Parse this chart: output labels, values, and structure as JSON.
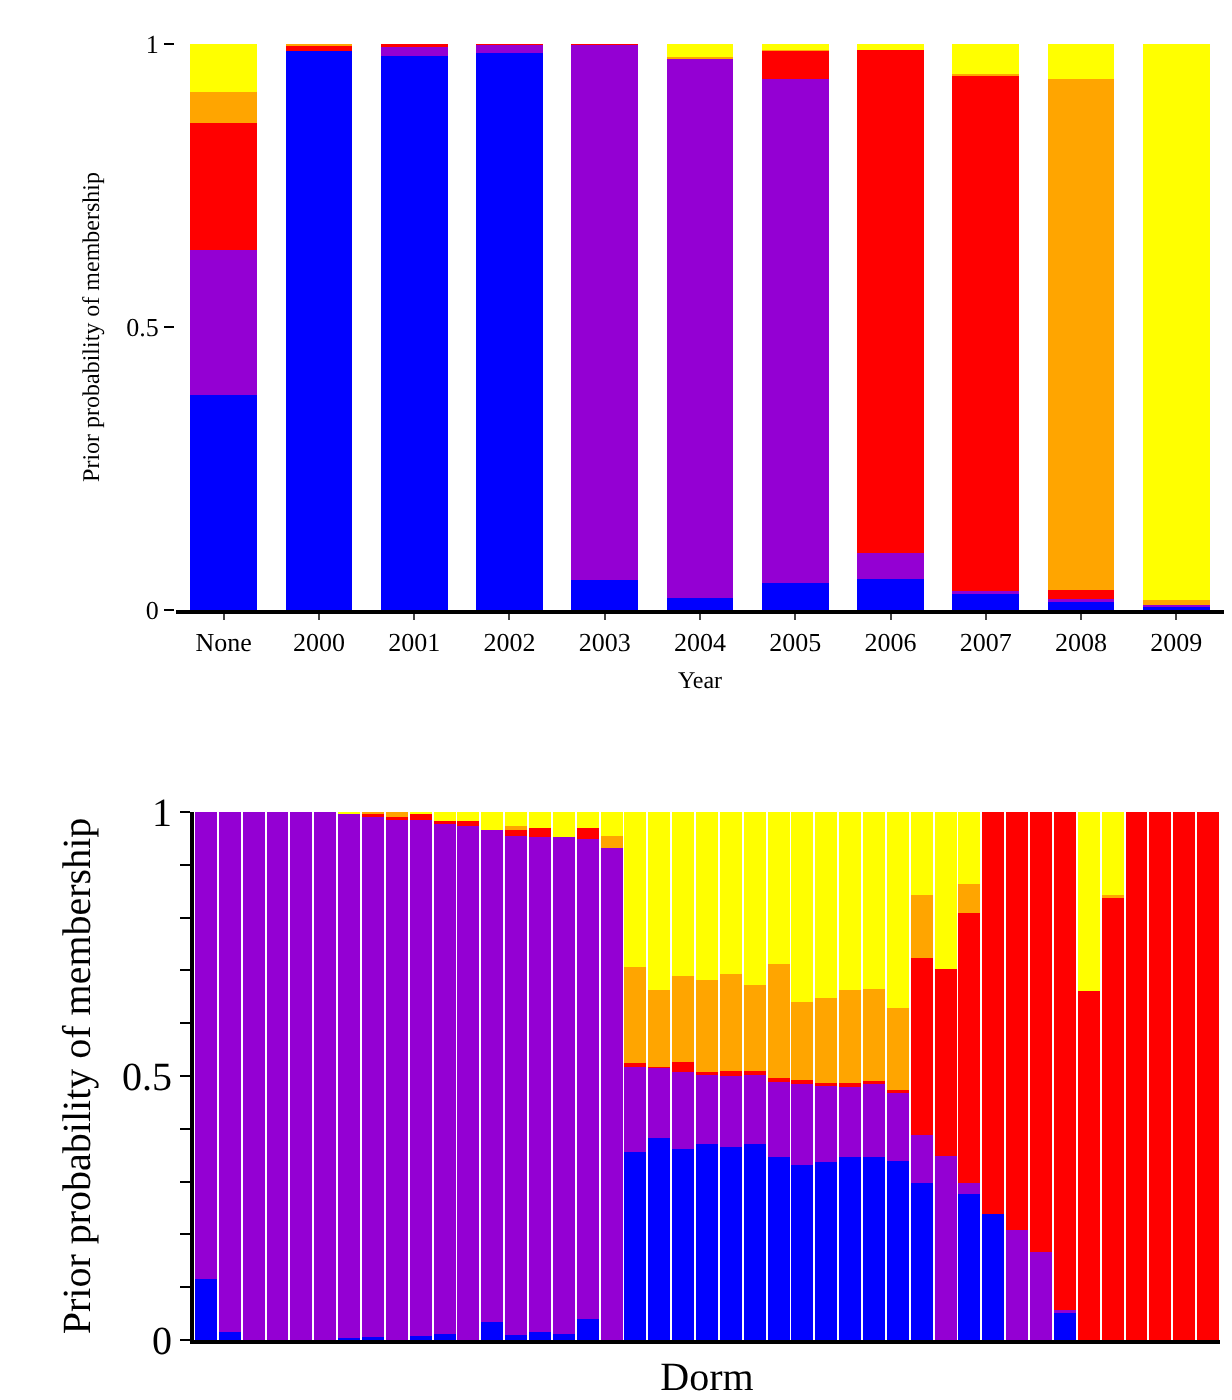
{
  "chart_data": [
    {
      "type": "bar",
      "stacked": true,
      "xlabel": "Year",
      "ylabel": "Prior probability of membership",
      "categories": [
        "None",
        "2000",
        "2001",
        "2002",
        "2003",
        "2004",
        "2005",
        "2006",
        "2007",
        "2008",
        "2009"
      ],
      "ylim": [
        0,
        1
      ],
      "yticks": [
        0,
        0.5,
        1
      ],
      "series": [
        {
          "color": "#0000ff",
          "values": [
            0.38,
            0.987,
            0.978,
            0.985,
            0.053,
            0.021,
            0.048,
            0.055,
            0.029,
            0.015,
            0.006
          ]
        },
        {
          "color": "#9400d3",
          "values": [
            0.256,
            0,
            0.016,
            0.013,
            0.945,
            0.953,
            0.891,
            0.045,
            0.005,
            0.005,
            0.003
          ]
        },
        {
          "color": "#ff0000",
          "values": [
            0.224,
            0.01,
            0.006,
            0.002,
            0.002,
            0,
            0.048,
            0.89,
            0.909,
            0.016,
            0
          ]
        },
        {
          "color": "#ffa500",
          "values": [
            0.056,
            0.003,
            0,
            0,
            0,
            0.003,
            0.003,
            0,
            0.004,
            0.903,
            0.009
          ]
        },
        {
          "color": "#ffff00",
          "values": [
            0.084,
            0,
            0,
            0,
            0,
            0.023,
            0.01,
            0.01,
            0.053,
            0.061,
            0.982
          ]
        }
      ]
    },
    {
      "type": "bar",
      "stacked": true,
      "xlabel": "Dorm",
      "ylabel": "Prior probability of membership",
      "categories": [
        null,
        null,
        null,
        null,
        null,
        null,
        null,
        null,
        null,
        null,
        null,
        null,
        null,
        null,
        null,
        null,
        null,
        null,
        null,
        null,
        null,
        null,
        null,
        null,
        null,
        null,
        null,
        null,
        null,
        null,
        null,
        null,
        null,
        null,
        null,
        null,
        null,
        null,
        null,
        null,
        null,
        null,
        null
      ],
      "ylim": [
        0,
        1
      ],
      "yticks": [
        0,
        {
          "value": 0.1,
          "label": null
        },
        {
          "value": 0.2,
          "label": null
        },
        {
          "value": 0.3,
          "label": null
        },
        {
          "value": 0.4,
          "label": null
        },
        0.5,
        {
          "value": 0.6,
          "label": null
        },
        {
          "value": 0.7,
          "label": null
        },
        {
          "value": 0.8,
          "label": null
        },
        {
          "value": 0.9,
          "label": null
        },
        1
      ],
      "series": [
        {
          "color": "#0000ff",
          "values": [
            0.116,
            0.016,
            0,
            0,
            0,
            0,
            0.004,
            0.006,
            0,
            0.007,
            0.012,
            0,
            0.035,
            0.01,
            0.015,
            0.011,
            0.04,
            0,
            0.356,
            0.383,
            0.361,
            0.372,
            0.366,
            0.372,
            0.347,
            0.331,
            0.338,
            0.347,
            0.347,
            0.339,
            0.297,
            0,
            0.277,
            0.238,
            0,
            0,
            0.052,
            0,
            0,
            0,
            0,
            0,
            0
          ]
        },
        {
          "color": "#9400d3",
          "values": [
            0.884,
            0.984,
            1,
            1,
            1,
            1,
            0.992,
            0.984,
            0.984,
            0.977,
            0.965,
            0.974,
            0.93,
            0.945,
            0.938,
            0.942,
            0.908,
            0.931,
            0.161,
            0.132,
            0.146,
            0.13,
            0.134,
            0.129,
            0.142,
            0.154,
            0.144,
            0.132,
            0.138,
            0.129,
            0.092,
            0.349,
            0.021,
            0,
            0.209,
            0.167,
            0.004,
            0,
            0,
            0,
            0,
            0,
            0
          ]
        },
        {
          "color": "#ff0000",
          "values": [
            0,
            0,
            0,
            0,
            0,
            0,
            0,
            0.006,
            0.007,
            0.013,
            0.006,
            0.009,
            0,
            0.01,
            0.017,
            0,
            0.022,
            0,
            0.007,
            0.002,
            0.019,
            0.005,
            0.01,
            0.008,
            0.007,
            0.008,
            0.005,
            0.008,
            0.006,
            0.005,
            0.335,
            0.353,
            0.51,
            0.762,
            0.791,
            0.833,
            0.944,
            0.661,
            0.838,
            1,
            1,
            1,
            1
          ]
        },
        {
          "color": "#ffa500",
          "values": [
            0,
            0,
            0,
            0,
            0,
            0,
            0,
            0.004,
            0.009,
            0,
            0,
            0,
            0,
            0.009,
            0,
            0,
            0,
            0.024,
            0.182,
            0.146,
            0.164,
            0.174,
            0.183,
            0.163,
            0.216,
            0.147,
            0.161,
            0.176,
            0.174,
            0.156,
            0.119,
            0,
            0.056,
            0,
            0,
            0,
            0,
            0,
            0.004,
            0,
            0,
            0,
            0
          ]
        },
        {
          "color": "#ffff00",
          "values": [
            0,
            0,
            0,
            0,
            0,
            0,
            0.004,
            0,
            0,
            0.003,
            0.017,
            0.017,
            0.035,
            0.026,
            0.03,
            0.047,
            0.03,
            0.045,
            0.294,
            0.337,
            0.31,
            0.319,
            0.307,
            0.328,
            0.288,
            0.36,
            0.352,
            0.337,
            0.335,
            0.371,
            0.157,
            0.298,
            0.136,
            0,
            0,
            0,
            0,
            0.339,
            0.158,
            0,
            0,
            0,
            0
          ]
        }
      ]
    }
  ]
}
